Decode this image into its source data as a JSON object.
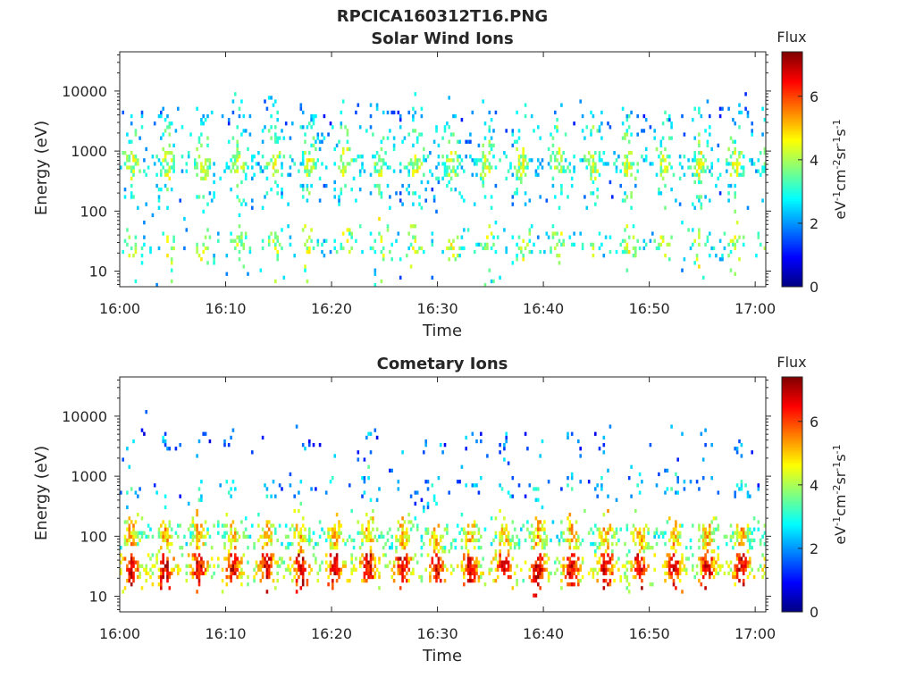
{
  "figure": {
    "title": "RPCICA160312T16.PNG"
  },
  "colormap": "jet",
  "chart_data": [
    {
      "type": "heatmap",
      "title": "Solar Wind Ions",
      "xlabel": "Time",
      "ylabel": "Energy (eV)",
      "x_tick_labels": [
        "16:00",
        "16:10",
        "16:20",
        "16:30",
        "16:40",
        "16:50",
        "17:00"
      ],
      "x_range_minutes": [
        0,
        61
      ],
      "y_scale": "log",
      "y_tick_values": [
        10,
        100,
        1000,
        10000
      ],
      "y_tick_labels": [
        "10",
        "100",
        "1000",
        "10000"
      ],
      "y_range_eV": [
        5.5,
        45000
      ],
      "colorbar": {
        "title": "Flux",
        "label": "eV-1cm-2sr-1s-1",
        "range": [
          0,
          7.4
        ],
        "tick_values": [
          0,
          2,
          4,
          6
        ],
        "tick_labels": [
          "0",
          "2",
          "4",
          "6"
        ]
      },
      "bands": [
        {
          "energy_eV": 600,
          "flux_level": 3.6,
          "density": 0.55
        },
        {
          "energy_eV": 1800,
          "flux_level": 3.0,
          "density": 0.22
        },
        {
          "energy_eV": 3500,
          "flux_level": 2.3,
          "density": 0.15
        },
        {
          "energy_eV": 28,
          "flux_level": 3.6,
          "density": 0.3
        },
        {
          "energy_eV": 200,
          "flux_level": 2.8,
          "density": 0.18
        },
        {
          "energy_eV": 8,
          "flux_level": 3.0,
          "density": 0.03
        }
      ],
      "pulse_period_minutes": 3.35
    },
    {
      "type": "heatmap",
      "title": "Cometary Ions",
      "xlabel": "Time",
      "ylabel": "Energy (eV)",
      "x_tick_labels": [
        "16:00",
        "16:10",
        "16:20",
        "16:30",
        "16:40",
        "16:50",
        "17:00"
      ],
      "x_range_minutes": [
        0,
        61
      ],
      "y_scale": "log",
      "y_tick_values": [
        10,
        100,
        1000,
        10000
      ],
      "y_tick_labels": [
        "10",
        "100",
        "1000",
        "10000"
      ],
      "y_range_eV": [
        5.5,
        45000
      ],
      "colorbar": {
        "title": "Flux",
        "label": "eV-1cm-2sr-1s-1",
        "range": [
          0,
          7.4
        ],
        "tick_values": [
          0,
          2,
          4,
          6
        ],
        "tick_labels": [
          "0",
          "2",
          "4",
          "6"
        ]
      },
      "bands": [
        {
          "energy_eV": 30,
          "flux_level": 5.8,
          "density": 0.85
        },
        {
          "energy_eV": 100,
          "flux_level": 4.4,
          "density": 0.7
        },
        {
          "energy_eV": 600,
          "flux_level": 2.4,
          "density": 0.12
        },
        {
          "energy_eV": 3500,
          "flux_level": 1.8,
          "density": 0.08
        }
      ],
      "pulse_period_minutes": 3.2
    }
  ]
}
